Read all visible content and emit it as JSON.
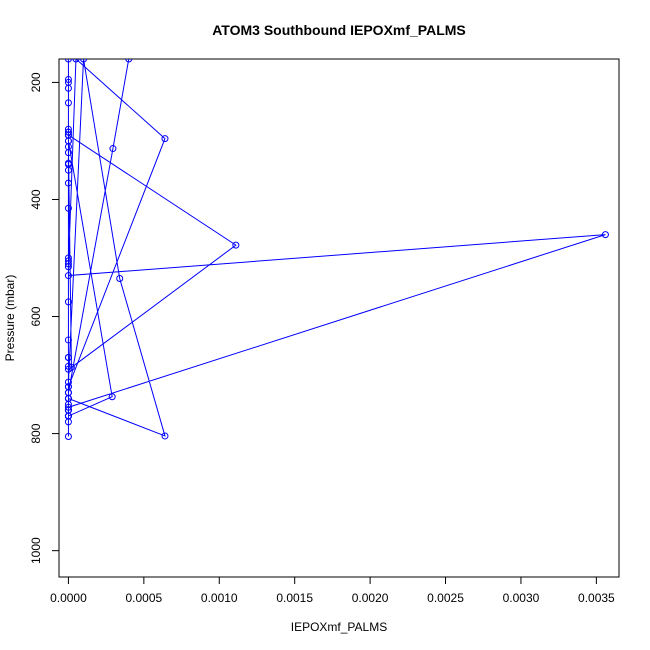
{
  "chart_data": {
    "type": "line",
    "title": "ATOM3 Southbound IEPOXmf_PALMS",
    "xlabel": "IEPOXmf_PALMS",
    "ylabel": "Pressure (mbar)",
    "xlim": [
      -6.25e-05,
      0.00365
    ],
    "ylim": [
      1045,
      160
    ],
    "y_reversed": true,
    "grid": false,
    "legend": "none",
    "x_ticks": [
      "0.0000",
      "0.0005",
      "0.0010",
      "0.0015",
      "0.0020",
      "0.0025",
      "0.0030",
      "0.0035"
    ],
    "x_tick_values": [
      0,
      0.0005,
      0.001,
      0.0015,
      0.002,
      0.0025,
      0.003,
      0.0035
    ],
    "y_ticks": [
      "200",
      "400",
      "600",
      "800",
      "1000"
    ],
    "y_tick_values": [
      200,
      400,
      600,
      800,
      1000
    ],
    "series": [
      {
        "color": "#0000ff",
        "marker": "open-circle",
        "x": [
          0.0004,
          0.000295,
          0.0,
          0.0,
          0.0,
          0.0,
          0.0,
          0.0,
          0.0,
          0.0,
          0.0,
          0.0001,
          0.00034,
          0.00064,
          0.0,
          0.0,
          0.0,
          0.0,
          0.0,
          0.0,
          0.0,
          0.0,
          0.0,
          0.0,
          2e-05,
          0.00111,
          0.0,
          0.0,
          0.0,
          0.0,
          0.0,
          0.00029,
          0.0,
          0.0,
          0.0,
          0.0,
          0.0,
          0.0,
          0.0,
          0.0,
          0.0,
          0.0,
          0.0,
          0.00356,
          0.0,
          0.0,
          0.0,
          0.0,
          5e-05,
          0.00064,
          0.0,
          0.0,
          0.0,
          0.0,
          0.0,
          0.0,
          0.0,
          0.0,
          0.0,
          0.0
        ],
        "y": [
          160,
          313,
          730,
          285,
          720,
          195,
          740,
          235,
          770,
          290,
          712,
          160,
          535,
          804,
          740,
          280,
          690,
          300,
          760,
          320,
          670,
          340,
          750,
          310,
          687,
          478,
          290,
          730,
          500,
          575,
          770,
          737,
          300,
          670,
          350,
          640,
          780,
          200,
          770,
          505,
          760,
          415,
          755,
          460,
          530,
          510,
          770,
          515,
          160,
          296,
          720,
          372,
          760,
          338,
          685,
          210,
          740,
          285,
          805,
          160
        ]
      }
    ]
  }
}
